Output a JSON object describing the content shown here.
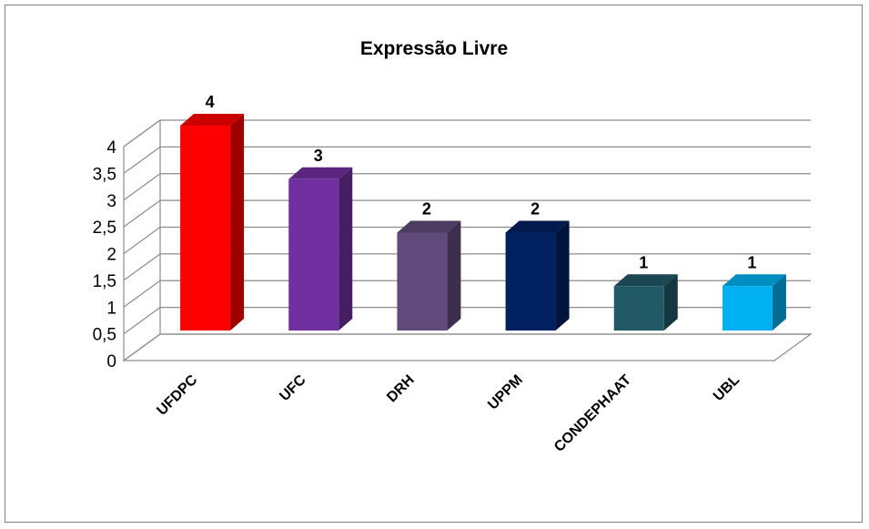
{
  "chart_data": {
    "type": "bar",
    "title": "Expressão Livre",
    "xlabel": "",
    "ylabel": "",
    "categories": [
      "UFDPC",
      "UFC",
      "DRH",
      "UPPM",
      "CONDEPHAAT",
      "UBL"
    ],
    "values": [
      4,
      3,
      2,
      2,
      1,
      1
    ],
    "value_labels": [
      "4",
      "3",
      "2",
      "2",
      "1",
      "1"
    ],
    "ylim": [
      0,
      4
    ],
    "yticks": [
      0,
      0.5,
      1,
      1.5,
      2,
      2.5,
      3,
      3.5,
      4
    ],
    "ytick_labels": [
      "0",
      "0,5",
      "1",
      "1,5",
      "2",
      "2,5",
      "3",
      "3,5",
      "4"
    ],
    "grid": true,
    "legend": "none",
    "style": "3d-column",
    "colors": [
      "#ff0000",
      "#7030a0",
      "#604a7b",
      "#002060",
      "#215967",
      "#00b0f0"
    ]
  }
}
